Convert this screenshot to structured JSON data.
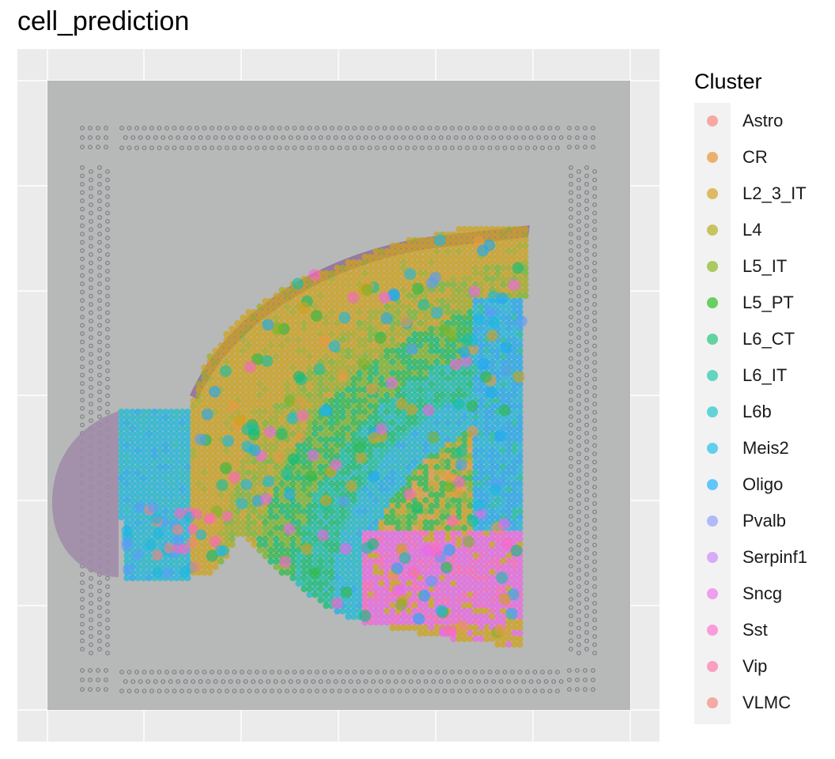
{
  "chart_data": {
    "type": "scatter",
    "title": "cell_prediction",
    "xlabel": "",
    "ylabel": "",
    "grid": true,
    "background_image": "spatial-tissue-section-he",
    "legend": {
      "title": "Cluster",
      "placement": "right",
      "entries": [
        {
          "name": "Astro",
          "color": "#F8766D"
        },
        {
          "name": "CR",
          "color": "#E58700"
        },
        {
          "name": "L2_3_IT",
          "color": "#C99800"
        },
        {
          "name": "L4",
          "color": "#A3A500"
        },
        {
          "name": "L5_IT",
          "color": "#6BB100"
        },
        {
          "name": "L5_PT",
          "color": "#00BA38"
        },
        {
          "name": "L6_CT",
          "color": "#00BF7D"
        },
        {
          "name": "L6_IT",
          "color": "#00C0AF"
        },
        {
          "name": "L6b",
          "color": "#00BCD8"
        },
        {
          "name": "Meis2",
          "color": "#00B0F6"
        },
        {
          "name": "Oligo",
          "color": "#619CFF"
        },
        {
          "name": "Pvalb",
          "color": "#B983FF"
        },
        {
          "name": "Serpinf1",
          "color": "#E76BF3"
        },
        {
          "name": "Sncg",
          "color": "#FD61D1"
        },
        {
          "name": "Sst",
          "color": "#FF67A4"
        },
        {
          "name": "Vip",
          "color": "#F8766D"
        },
        {
          "name": "VLMC",
          "color": "#F8766D"
        }
      ]
    }
  }
}
